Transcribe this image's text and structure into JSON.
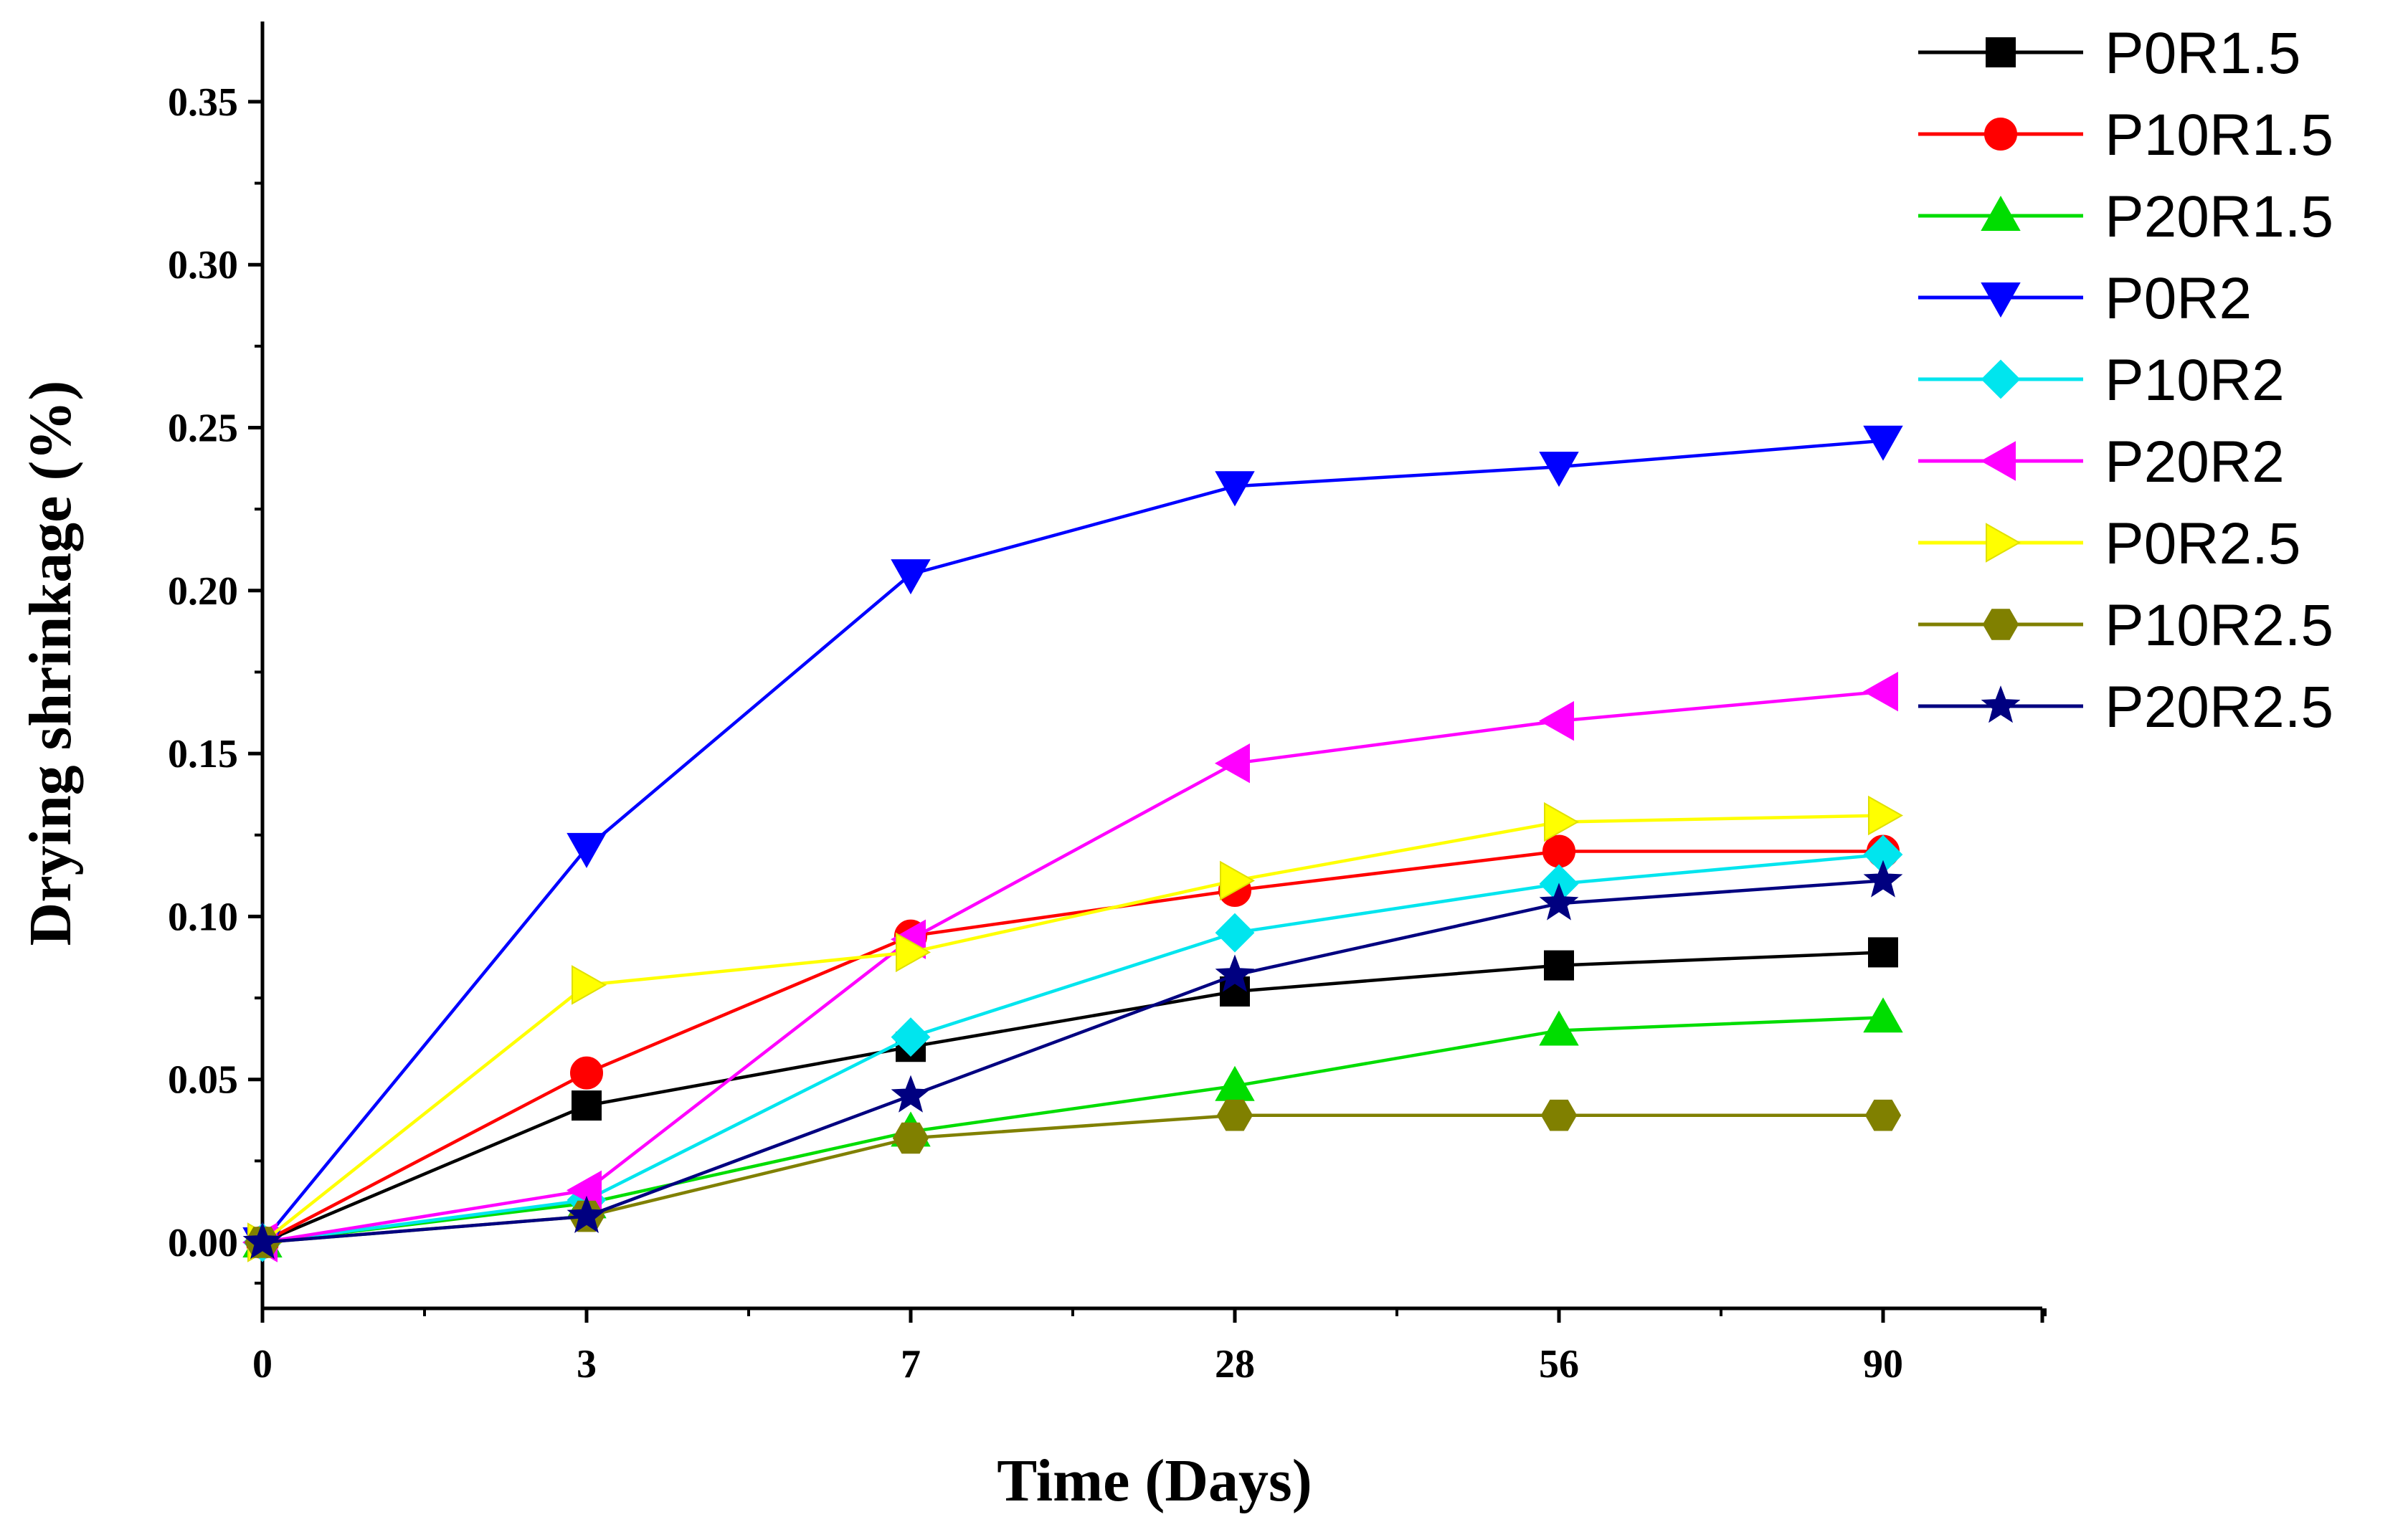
{
  "chart_data": {
    "type": "line",
    "title": "",
    "xlabel": "Time (Days)",
    "ylabel": "Drying shrinkage (%)",
    "categories": [
      "0",
      "3",
      "7",
      "28",
      "56",
      "90"
    ],
    "ylim": [
      -0.02,
      0.375
    ],
    "yticks": [
      "0.00",
      "0.05",
      "0.10",
      "0.15",
      "0.20",
      "0.25",
      "0.30",
      "0.35"
    ],
    "ytick_values": [
      0,
      0.05,
      0.1,
      0.15,
      0.2,
      0.25,
      0.3,
      0.35
    ],
    "grid": false,
    "legend_position": "top-right",
    "series": [
      {
        "name": "P0R1.5",
        "color": "#000000",
        "marker": "square",
        "values": [
          0,
          0.042,
          0.06,
          0.077,
          0.085,
          0.089
        ]
      },
      {
        "name": "P10R1.5",
        "color": "#ff0000",
        "marker": "circle",
        "values": [
          0,
          0.052,
          0.094,
          0.108,
          0.12,
          0.12
        ]
      },
      {
        "name": "P20R1.5",
        "color": "#00dd00",
        "marker": "triangle-up",
        "values": [
          0,
          0.012,
          0.034,
          0.048,
          0.065,
          0.069
        ]
      },
      {
        "name": "P0R2",
        "color": "#0000ff",
        "marker": "triangle-down",
        "values": [
          0,
          0.121,
          0.205,
          0.232,
          0.238,
          0.246
        ]
      },
      {
        "name": "P10R2",
        "color": "#00e5ee",
        "marker": "diamond",
        "values": [
          0,
          0.013,
          0.063,
          0.095,
          0.11,
          0.119
        ]
      },
      {
        "name": "P20R2",
        "color": "#ff00ff",
        "marker": "triangle-left",
        "values": [
          0,
          0.016,
          0.093,
          0.147,
          0.16,
          0.169
        ]
      },
      {
        "name": "P0R2.5",
        "color": "#ffff00",
        "marker": "triangle-right",
        "values": [
          0,
          0.079,
          0.089,
          0.111,
          0.129,
          0.131
        ]
      },
      {
        "name": "P10R2.5",
        "color": "#808000",
        "marker": "hexagon",
        "values": [
          0,
          0.008,
          0.032,
          0.039,
          0.039,
          0.039
        ]
      },
      {
        "name": "P20R2.5",
        "color": "#000080",
        "marker": "star",
        "values": [
          0,
          0.008,
          0.045,
          0.082,
          0.104,
          0.111
        ]
      }
    ]
  }
}
